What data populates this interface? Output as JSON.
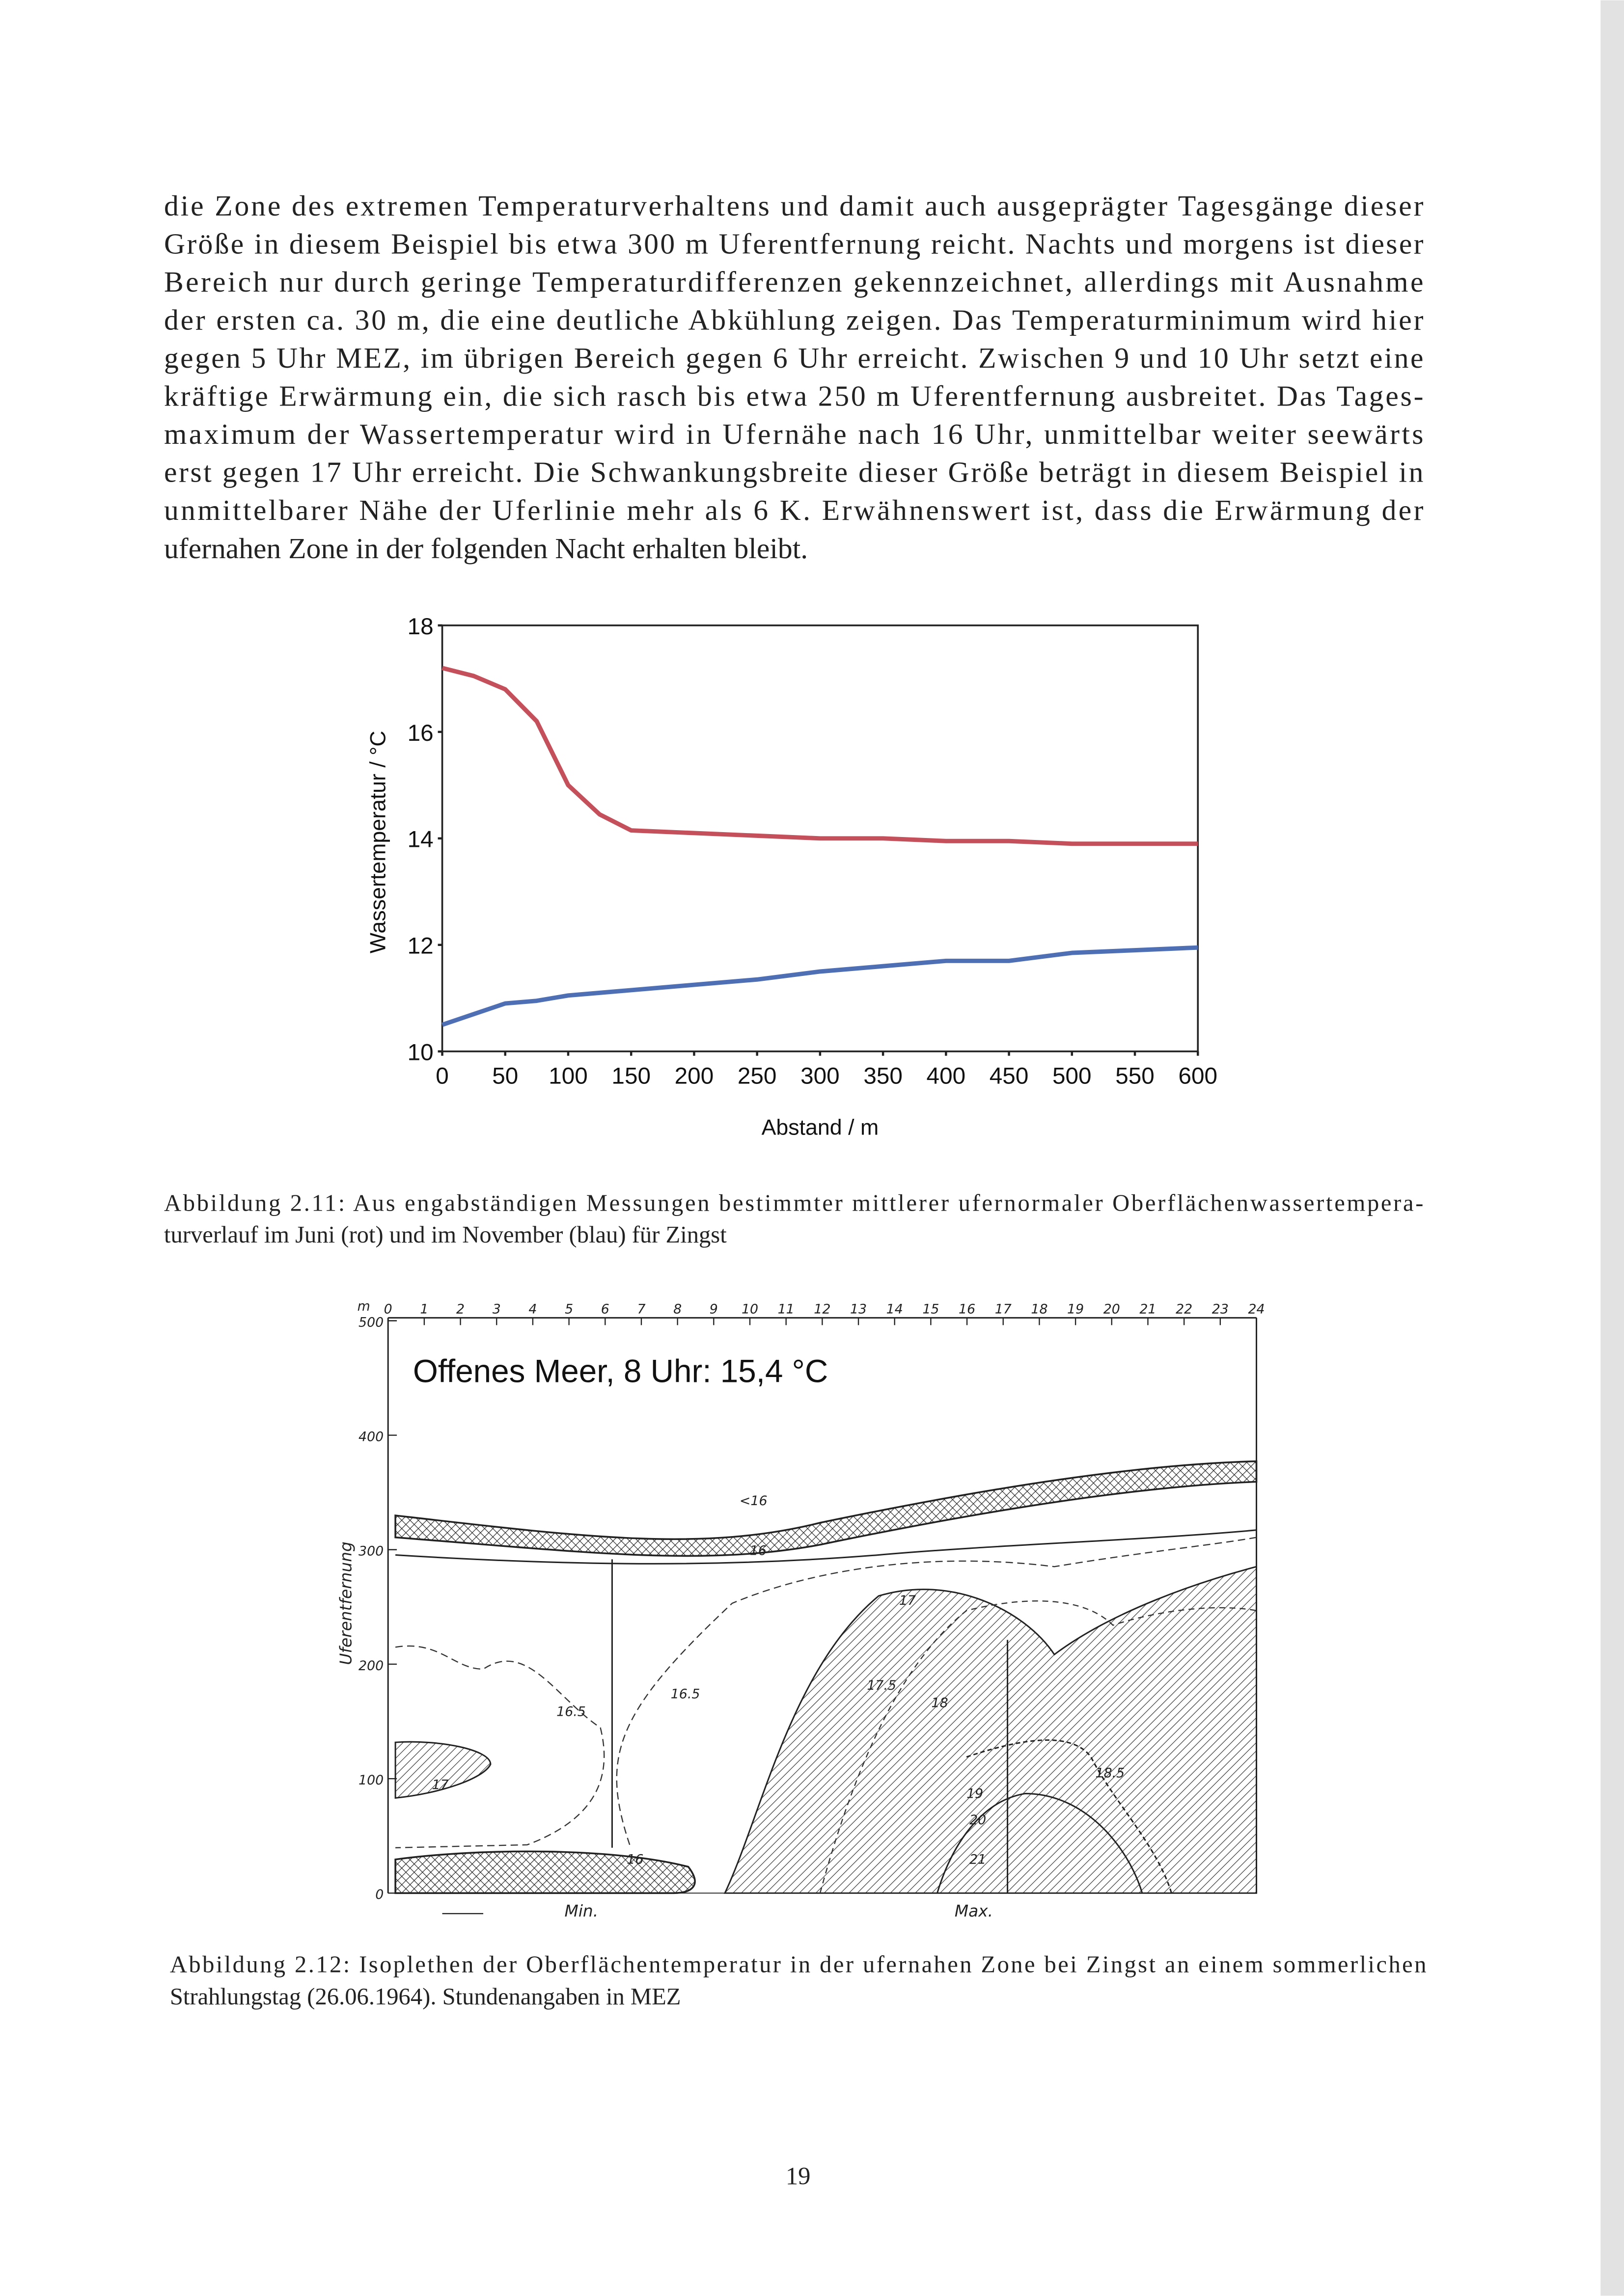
{
  "text_lines": [
    "die Zone des extremen Temperaturverhaltens und damit auch ausgeprägter Tagesgänge dieser",
    "Größe in diesem Beispiel bis etwa 300 m Uferentfernung reicht. Nachts und morgens ist dieser",
    "Bereich nur durch geringe Temperaturdifferenzen gekennzeichnet, allerdings mit Ausnahme",
    "der ersten ca. 30 m, die eine deutliche Abkühlung zeigen. Das Temperaturminimum wird hier",
    "gegen 5 Uhr MEZ, im übrigen Bereich gegen 6 Uhr erreicht. Zwischen 9 und 10 Uhr setzt eine",
    "kräftige Erwärmung ein, die sich rasch bis etwa 250 m Uferentfernung ausbreitet. Das Tages-",
    "maximum der Wassertemperatur wird in Ufernähe nach 16 Uhr, unmittelbar weiter seewärts",
    "erst gegen 17 Uhr erreicht. Die Schwankungsbreite dieser Größe beträgt in diesem Beispiel in",
    "unmittelbarer Nähe der Uferlinie mehr als 6 K. Erwähnenswert ist, dass die Erwärmung der",
    "ufernahen Zone in der folgenden Nacht erhalten bleibt."
  ],
  "chart_data": {
    "type": "line",
    "xlabel": "Abstand / m",
    "ylabel": "Wassertemperatur / °C",
    "x": [
      0,
      25,
      50,
      75,
      100,
      125,
      150,
      200,
      250,
      300,
      350,
      400,
      450,
      500,
      550,
      600
    ],
    "series": [
      {
        "color": "#c3505a",
        "values": [
          17.2,
          17.05,
          16.8,
          16.2,
          15.0,
          14.45,
          14.15,
          14.1,
          14.05,
          14.0,
          14.0,
          13.95,
          13.95,
          13.9,
          13.9,
          13.9
        ]
      },
      {
        "color": "#4f6fb5",
        "values": [
          10.5,
          10.7,
          10.9,
          10.95,
          11.05,
          11.1,
          11.15,
          11.25,
          11.35,
          11.5,
          11.6,
          11.7,
          11.7,
          11.85,
          11.9,
          11.95
        ]
      }
    ],
    "xlim": [
      0,
      600
    ],
    "xticks": [
      0,
      50,
      100,
      150,
      200,
      250,
      300,
      350,
      400,
      450,
      500,
      550,
      600
    ],
    "ylim": [
      10,
      18
    ],
    "yticks": [
      10,
      12,
      14,
      16,
      18
    ]
  },
  "caption1_lines": [
    "Abbildung 2.11: Aus engabständigen Messungen bestimmter mittlerer ufernormaler Oberflächenwassertempera-",
    "turverlauf im Juni (rot) und im November (blau) für Zingst"
  ],
  "figure2": {
    "title": "Offenes Meer, 8 Uhr: 15,4 °C",
    "unit": "m",
    "distance_labels": [
      500,
      400,
      300,
      200,
      100,
      0
    ],
    "axis_label": "Uferentfernung",
    "hour_labels": [
      0,
      1,
      2,
      3,
      4,
      5,
      6,
      7,
      8,
      9,
      10,
      11,
      12,
      13,
      14,
      15,
      16,
      17,
      18,
      19,
      20,
      21,
      22,
      23,
      24
    ],
    "contour_labels": [
      "<16",
      "16",
      "16.5",
      "16.5",
      "17",
      "17",
      "17.5",
      "18",
      "18.5",
      "19",
      "20",
      "21",
      "16"
    ],
    "min_label": "Min.",
    "max_label": "Max."
  },
  "caption2_lines": [
    "Abbildung 2.12: Isoplethen der Oberflächentemperatur in der ufernahen Zone bei Zingst an einem sommerlichen",
    "Strahlungstag (26.06.1964). Stundenangaben in MEZ"
  ],
  "page_number": "19"
}
